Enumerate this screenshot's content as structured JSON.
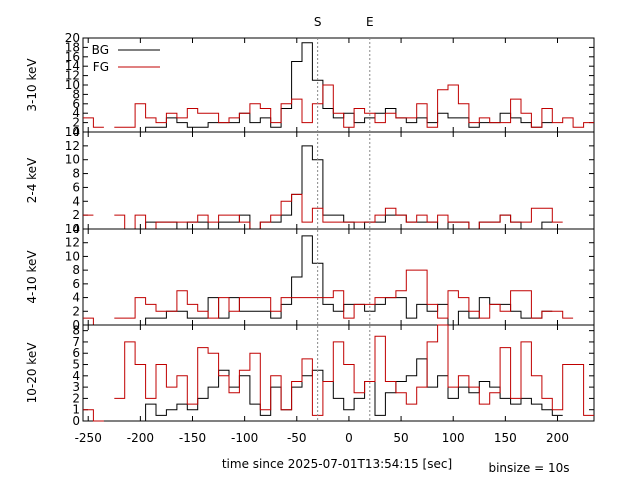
{
  "chart_data": {
    "type": "line",
    "step": true,
    "xlabel": "time since 2025-07-01T13:54:15 [sec]",
    "note": "binsize = 10s",
    "xlim": [
      -255,
      235
    ],
    "xticks": [
      -250,
      -200,
      -150,
      -100,
      -50,
      0,
      50,
      100,
      150,
      200
    ],
    "markers": [
      {
        "label": "S",
        "x": -30
      },
      {
        "label": "E",
        "x": 20
      }
    ],
    "legend": {
      "placement": "top-left",
      "entries": [
        "BG",
        "FG"
      ]
    },
    "colors": {
      "BG": "#000000",
      "FG": "#c00000",
      "markers": "#888888"
    },
    "bin_edges": [
      -255,
      -245,
      -235,
      -225,
      -215,
      -205,
      -195,
      -185,
      -175,
      -165,
      -155,
      -145,
      -135,
      -125,
      -115,
      -105,
      -95,
      -85,
      -75,
      -65,
      -55,
      -45,
      -35,
      -25,
      -15,
      -5,
      5,
      15,
      25,
      35,
      45,
      55,
      65,
      75,
      85,
      95,
      105,
      115,
      125,
      135,
      145,
      155,
      165,
      175,
      185,
      195,
      205,
      215,
      225,
      235
    ],
    "panels": [
      {
        "ylabel": "3-10 keV",
        "ylim": [
          0,
          20
        ],
        "yticks": [
          0,
          2,
          4,
          6,
          8,
          10,
          12,
          14,
          16,
          18,
          20
        ],
        "series": [
          {
            "name": "BG",
            "values": [
              null,
              null,
              null,
              null,
              null,
              0,
              1,
              1,
              3,
              2,
              1,
              1,
              2,
              2,
              2,
              4,
              2,
              3,
              1,
              5,
              15,
              19,
              11,
              5,
              3,
              4,
              2,
              3,
              4,
              5,
              3,
              2,
              3,
              2,
              4,
              3,
              3,
              1,
              2,
              2,
              4,
              3,
              2,
              1,
              2,
              null,
              null,
              null,
              null
            ]
          },
          {
            "name": "FG",
            "values": [
              3,
              1,
              null,
              1,
              1,
              6,
              3,
              2,
              4,
              3,
              5,
              4,
              4,
              2,
              3,
              4,
              6,
              5,
              2,
              6,
              7,
              2,
              6,
              10,
              4,
              1,
              5,
              4,
              2,
              4,
              3,
              3,
              6,
              1,
              9,
              10,
              6,
              2,
              3,
              2,
              2,
              7,
              4,
              1,
              5,
              2,
              3,
              1,
              2
            ]
          }
        ]
      },
      {
        "ylabel": "2-4 keV",
        "ylim": [
          0,
          14
        ],
        "yticks": [
          0,
          2,
          4,
          6,
          8,
          10,
          12,
          14
        ],
        "series": [
          {
            "name": "BG",
            "values": [
              null,
              null,
              null,
              null,
              null,
              0,
              1,
              1,
              1,
              0,
              1,
              1,
              0,
              1,
              1,
              2,
              0,
              1,
              1,
              2,
              5,
              12,
              10,
              2,
              2,
              1,
              0,
              1,
              1,
              2,
              2,
              1,
              1,
              1,
              0,
              1,
              1,
              0,
              1,
              1,
              2,
              1,
              0,
              0,
              1,
              null,
              null,
              null,
              null
            ]
          },
          {
            "name": "FG",
            "values": [
              2,
              null,
              null,
              2,
              0,
              2,
              0,
              1,
              1,
              1,
              1,
              2,
              1,
              2,
              2,
              1,
              0,
              1,
              2,
              4,
              5,
              1,
              3,
              1,
              1,
              1,
              1,
              1,
              2,
              3,
              2,
              1,
              2,
              1,
              2,
              1,
              1,
              0,
              1,
              1,
              2,
              1,
              1,
              3,
              3,
              1,
              null,
              null,
              null
            ]
          }
        ]
      },
      {
        "ylabel": "4-10 keV",
        "ylim": [
          0,
          14
        ],
        "yticks": [
          0,
          2,
          4,
          6,
          8,
          10,
          12,
          14
        ],
        "series": [
          {
            "name": "BG",
            "values": [
              null,
              null,
              null,
              null,
              null,
              0,
              1,
              1,
              2,
              2,
              1,
              1,
              4,
              1,
              4,
              2,
              2,
              2,
              1,
              3,
              7,
              13,
              9,
              3,
              2,
              3,
              3,
              2,
              3,
              4,
              4,
              1,
              3,
              2,
              3,
              0,
              2,
              1,
              4,
              3,
              3,
              2,
              1,
              1,
              2,
              null,
              null,
              null,
              null
            ]
          },
          {
            "name": "FG",
            "values": [
              1,
              0,
              null,
              1,
              1,
              4,
              3,
              2,
              2,
              5,
              3,
              2,
              1,
              4,
              2,
              4,
              4,
              4,
              2,
              4,
              4,
              4,
              4,
              4,
              5,
              1,
              3,
              3,
              4,
              4,
              5,
              8,
              8,
              3,
              1,
              5,
              4,
              2,
              1,
              3,
              2,
              5,
              5,
              1,
              2,
              2,
              1,
              null,
              null
            ]
          }
        ]
      },
      {
        "ylabel": "10-20 keV",
        "ylim": [
          0,
          8.5
        ],
        "yticks": [
          0,
          1,
          2,
          3,
          4,
          5,
          6,
          7,
          8
        ],
        "series": [
          {
            "name": "BG",
            "values": [
              null,
              null,
              null,
              null,
              null,
              0,
              1.5,
              0.5,
              1,
              1.5,
              1,
              2,
              3,
              4.5,
              3,
              4,
              1.5,
              0.5,
              3,
              1,
              3,
              4,
              4.5,
              3.5,
              2,
              1,
              2,
              3.5,
              0.5,
              2.5,
              3.5,
              4,
              5.5,
              3,
              4,
              2,
              3,
              2.5,
              3.5,
              3,
              2,
              1.5,
              2,
              1.5,
              1,
              0.5,
              null,
              null,
              null
            ]
          },
          {
            "name": "FG",
            "values": [
              1,
              0,
              null,
              2,
              7,
              5,
              2,
              5,
              3,
              4,
              1.5,
              6.5,
              6,
              4,
              2.5,
              4.5,
              6,
              1,
              4,
              1,
              3.5,
              5.5,
              0.5,
              3.5,
              7,
              5,
              2.5,
              3.5,
              7.5,
              3.5,
              2.5,
              1.5,
              3,
              7,
              9,
              3,
              4,
              3,
              1.5,
              2.5,
              6.5,
              2,
              7,
              4,
              2,
              1,
              5,
              5,
              0.5
            ]
          }
        ]
      }
    ]
  }
}
